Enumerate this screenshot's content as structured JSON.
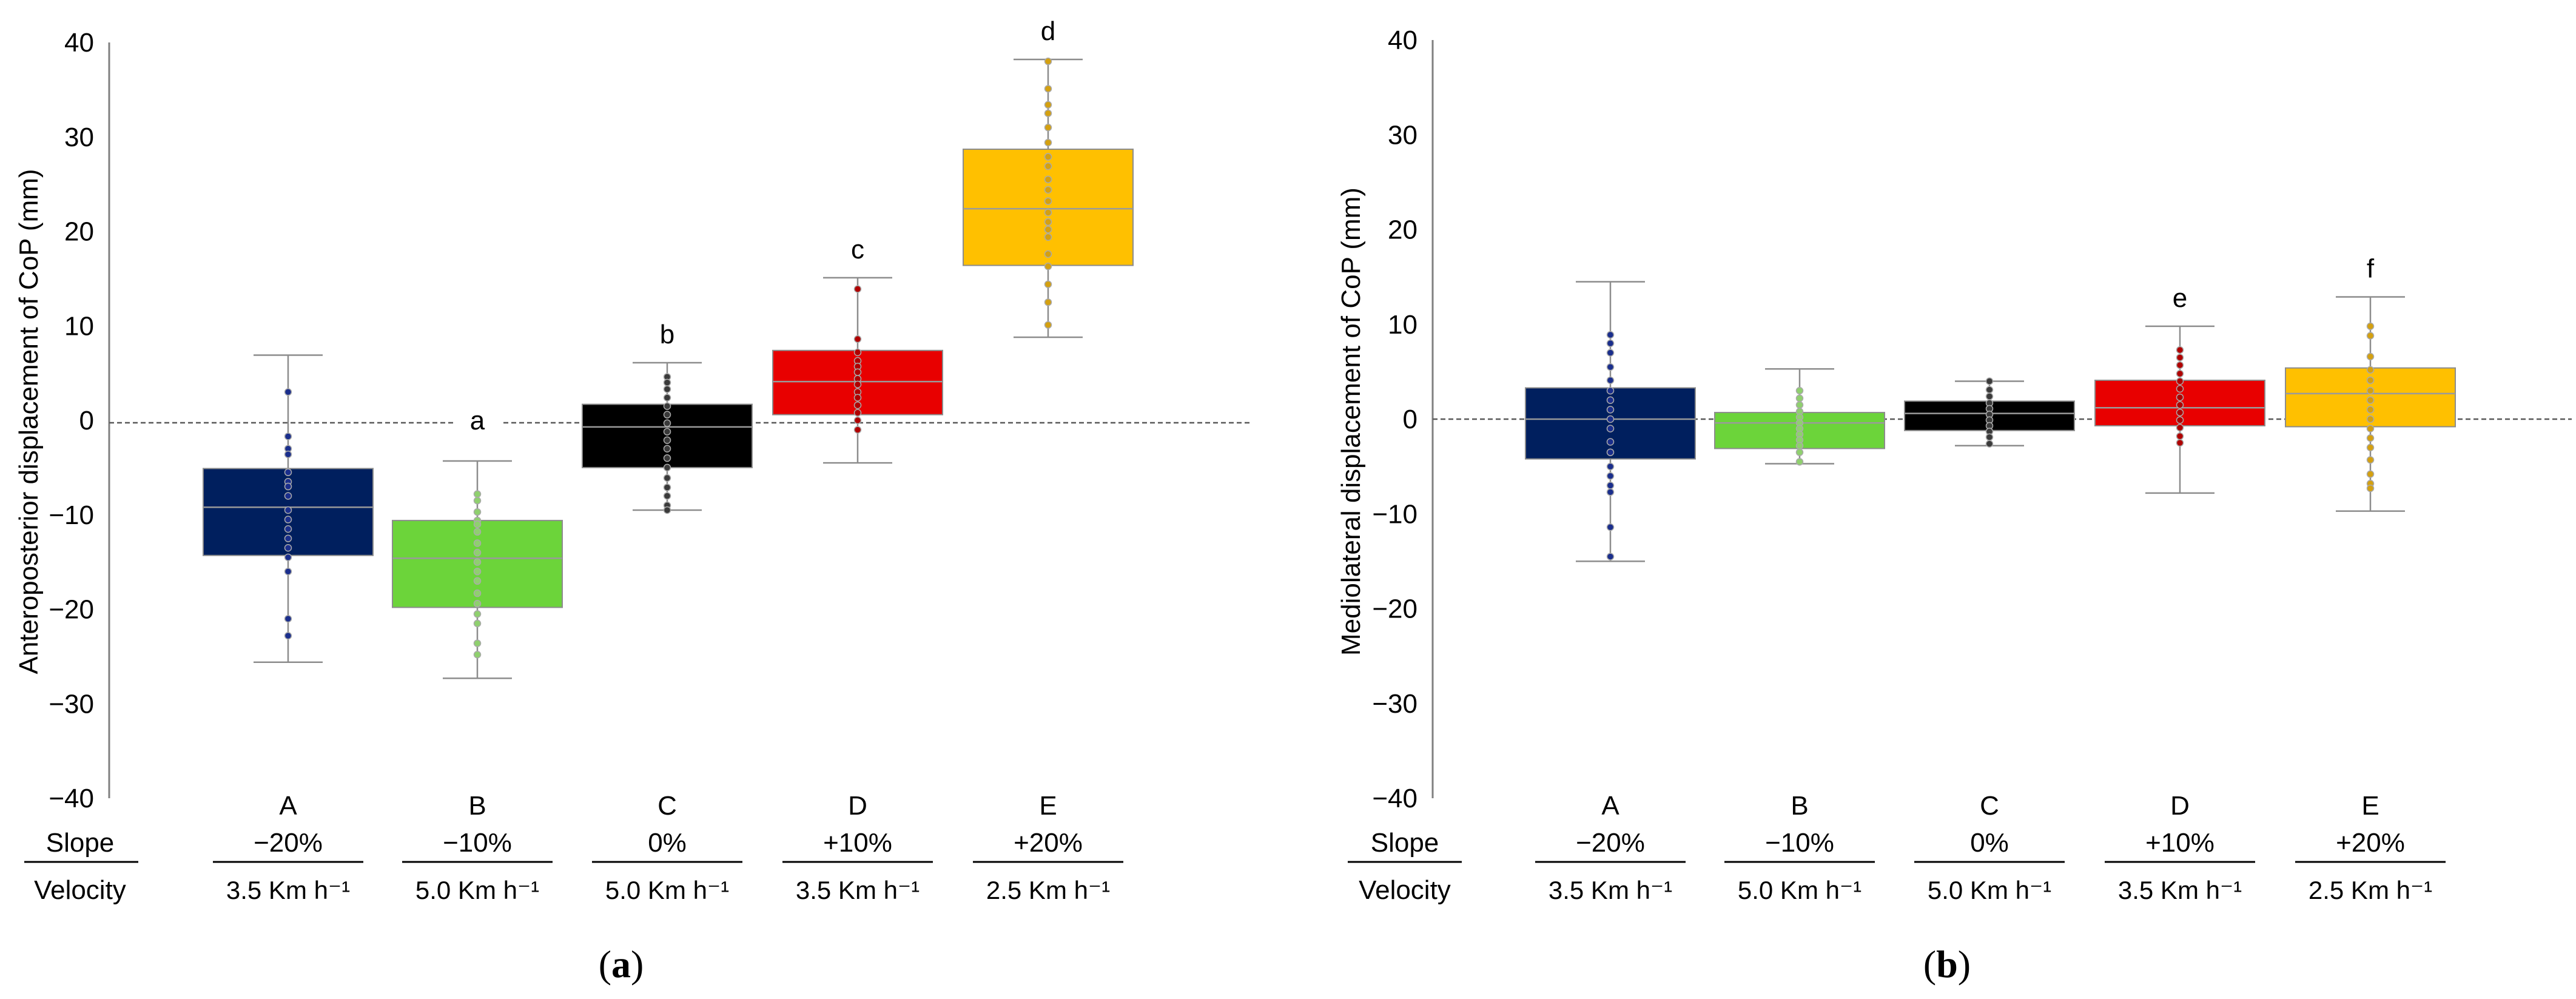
{
  "chart_data": [
    {
      "type": "box",
      "panel_label": "a",
      "ylabel": "Anteroposterior displacement of CoP (mm)",
      "ylim": [
        -40,
        40
      ],
      "yticks": [
        -40,
        -30,
        -20,
        -10,
        0,
        10,
        20,
        30,
        40
      ],
      "reference_line": 0,
      "row_labels": {
        "slope": "Slope",
        "velocity": "Velocity"
      },
      "groups": [
        {
          "id": "A",
          "slope": "−20%",
          "velocity": "3.5 Km h⁻¹",
          "color": "#001f5e",
          "q1": -14.3,
          "median": -9.2,
          "q3": -5.1,
          "whisker_low": -25.6,
          "whisker_high": 6.9,
          "letter": "",
          "points": [
            3.0,
            -1.7,
            -3.0,
            -3.6,
            -5.5,
            -6.5,
            -7.0,
            -8.0,
            -9.5,
            -10.5,
            -11.5,
            -12.5,
            -13.5,
            -14.5,
            -16.0,
            -21.0,
            -22.8
          ]
        },
        {
          "id": "B",
          "slope": "−10%",
          "velocity": "5.0 Km h⁻¹",
          "color": "#6cd43a",
          "q1": -19.8,
          "median": -14.6,
          "q3": -10.6,
          "whisker_low": -27.3,
          "whisker_high": -4.3,
          "letter": "a",
          "points": [
            -7.8,
            -8.5,
            -9.7,
            -10.6,
            -11.0,
            -11.8,
            -13.0,
            -14.0,
            -15.0,
            -16.0,
            -17.0,
            -18.3,
            -19.4,
            -20.5,
            -21.5,
            -23.6,
            -24.8
          ]
        },
        {
          "id": "C",
          "slope": "0%",
          "velocity": "5.0 Km h⁻¹",
          "color": "#000000",
          "q1": -5.0,
          "median": -0.7,
          "q3": 1.7,
          "whisker_low": -9.5,
          "whisker_high": 6.1,
          "letter": "b",
          "points": [
            4.6,
            4.0,
            3.3,
            2.4,
            1.5,
            0.6,
            -0.3,
            -1.2,
            -2.1,
            -3.0,
            -4.0,
            -5.0,
            -6.1,
            -7.1,
            -8.0,
            -9.0,
            -9.5
          ]
        },
        {
          "id": "D",
          "slope": "+10%",
          "velocity": "3.5 Km h⁻¹",
          "color": "#e80000",
          "q1": 0.6,
          "median": 4.1,
          "q3": 7.4,
          "whisker_low": -4.5,
          "whisker_high": 15.1,
          "letter": "c",
          "points": [
            13.9,
            8.6,
            7.2,
            6.3,
            5.7,
            5.1,
            4.4,
            3.8,
            3.0,
            2.4,
            1.6,
            0.8,
            0.0,
            -1.0
          ]
        },
        {
          "id": "E",
          "slope": "+20%",
          "velocity": "2.5 Km h⁻¹",
          "color": "#ffc000",
          "q1": 16.4,
          "median": 22.4,
          "q3": 28.7,
          "whisker_low": 8.8,
          "whisker_high": 38.2,
          "letter": "d",
          "points": [
            38.0,
            35.1,
            33.4,
            32.5,
            31.0,
            29.4,
            27.9,
            26.9,
            25.5,
            24.4,
            23.2,
            22.0,
            21.0,
            20.2,
            19.4,
            17.6,
            16.3,
            14.4,
            12.5,
            10.1
          ]
        }
      ]
    },
    {
      "type": "box",
      "panel_label": "b",
      "ylabel": "Mediolateral displacement of CoP (mm)",
      "ylim": [
        -40,
        40
      ],
      "yticks": [
        -40,
        -30,
        -20,
        -10,
        0,
        10,
        20,
        30,
        40
      ],
      "reference_line": 0,
      "row_labels": {
        "slope": "Slope",
        "velocity": "Velocity"
      },
      "groups": [
        {
          "id": "A",
          "slope": "−20%",
          "velocity": "3.5 Km h⁻¹",
          "color": "#001f5e",
          "q1": -4.2,
          "median": 0.0,
          "q3": 3.3,
          "whisker_low": -15.0,
          "whisker_high": 14.5,
          "letter": "",
          "points": [
            8.9,
            8.0,
            7.0,
            5.5,
            4.1,
            3.0,
            2.0,
            1.0,
            0.0,
            -1.0,
            -2.4,
            -3.5,
            -5.0,
            -6.0,
            -7.0,
            -7.7,
            -11.4,
            -14.5
          ]
        },
        {
          "id": "B",
          "slope": "−10%",
          "velocity": "5.0 Km h⁻¹",
          "color": "#6cd43a",
          "q1": -3.1,
          "median": -0.4,
          "q3": 0.7,
          "whisker_low": -4.7,
          "whisker_high": 5.3,
          "letter": "",
          "points": [
            3.0,
            2.2,
            1.5,
            0.8,
            0.2,
            -0.4,
            -1.0,
            -1.6,
            -2.2,
            -2.8,
            -3.5,
            -4.5
          ]
        },
        {
          "id": "C",
          "slope": "0%",
          "velocity": "5.0 Km h⁻¹",
          "color": "#000000",
          "q1": -1.2,
          "median": 0.6,
          "q3": 1.9,
          "whisker_low": -2.8,
          "whisker_high": 4.0,
          "letter": "",
          "points": [
            4.0,
            3.1,
            2.4,
            1.7,
            1.1,
            0.5,
            -0.1,
            -0.7,
            -1.3,
            -1.9,
            -2.6
          ]
        },
        {
          "id": "D",
          "slope": "+10%",
          "velocity": "3.5 Km h⁻¹",
          "color": "#e80000",
          "q1": -0.7,
          "median": 1.2,
          "q3": 4.1,
          "whisker_low": -7.8,
          "whisker_high": 9.8,
          "letter": "e",
          "points": [
            7.3,
            6.5,
            5.7,
            4.8,
            4.0,
            3.2,
            2.3,
            1.5,
            0.7,
            -0.1,
            -0.9,
            -1.8,
            -2.5
          ]
        },
        {
          "id": "E",
          "slope": "+20%",
          "velocity": "2.5 Km h⁻¹",
          "color": "#ffc000",
          "q1": -0.8,
          "median": 2.7,
          "q3": 5.4,
          "whisker_low": -9.7,
          "whisker_high": 12.9,
          "letter": "f",
          "points": [
            9.8,
            8.8,
            6.6,
            5.2,
            4.1,
            3.0,
            2.0,
            1.0,
            0.0,
            -1.0,
            -2.0,
            -3.0,
            -4.3,
            -5.8,
            -6.8,
            -7.3
          ]
        }
      ]
    }
  ]
}
